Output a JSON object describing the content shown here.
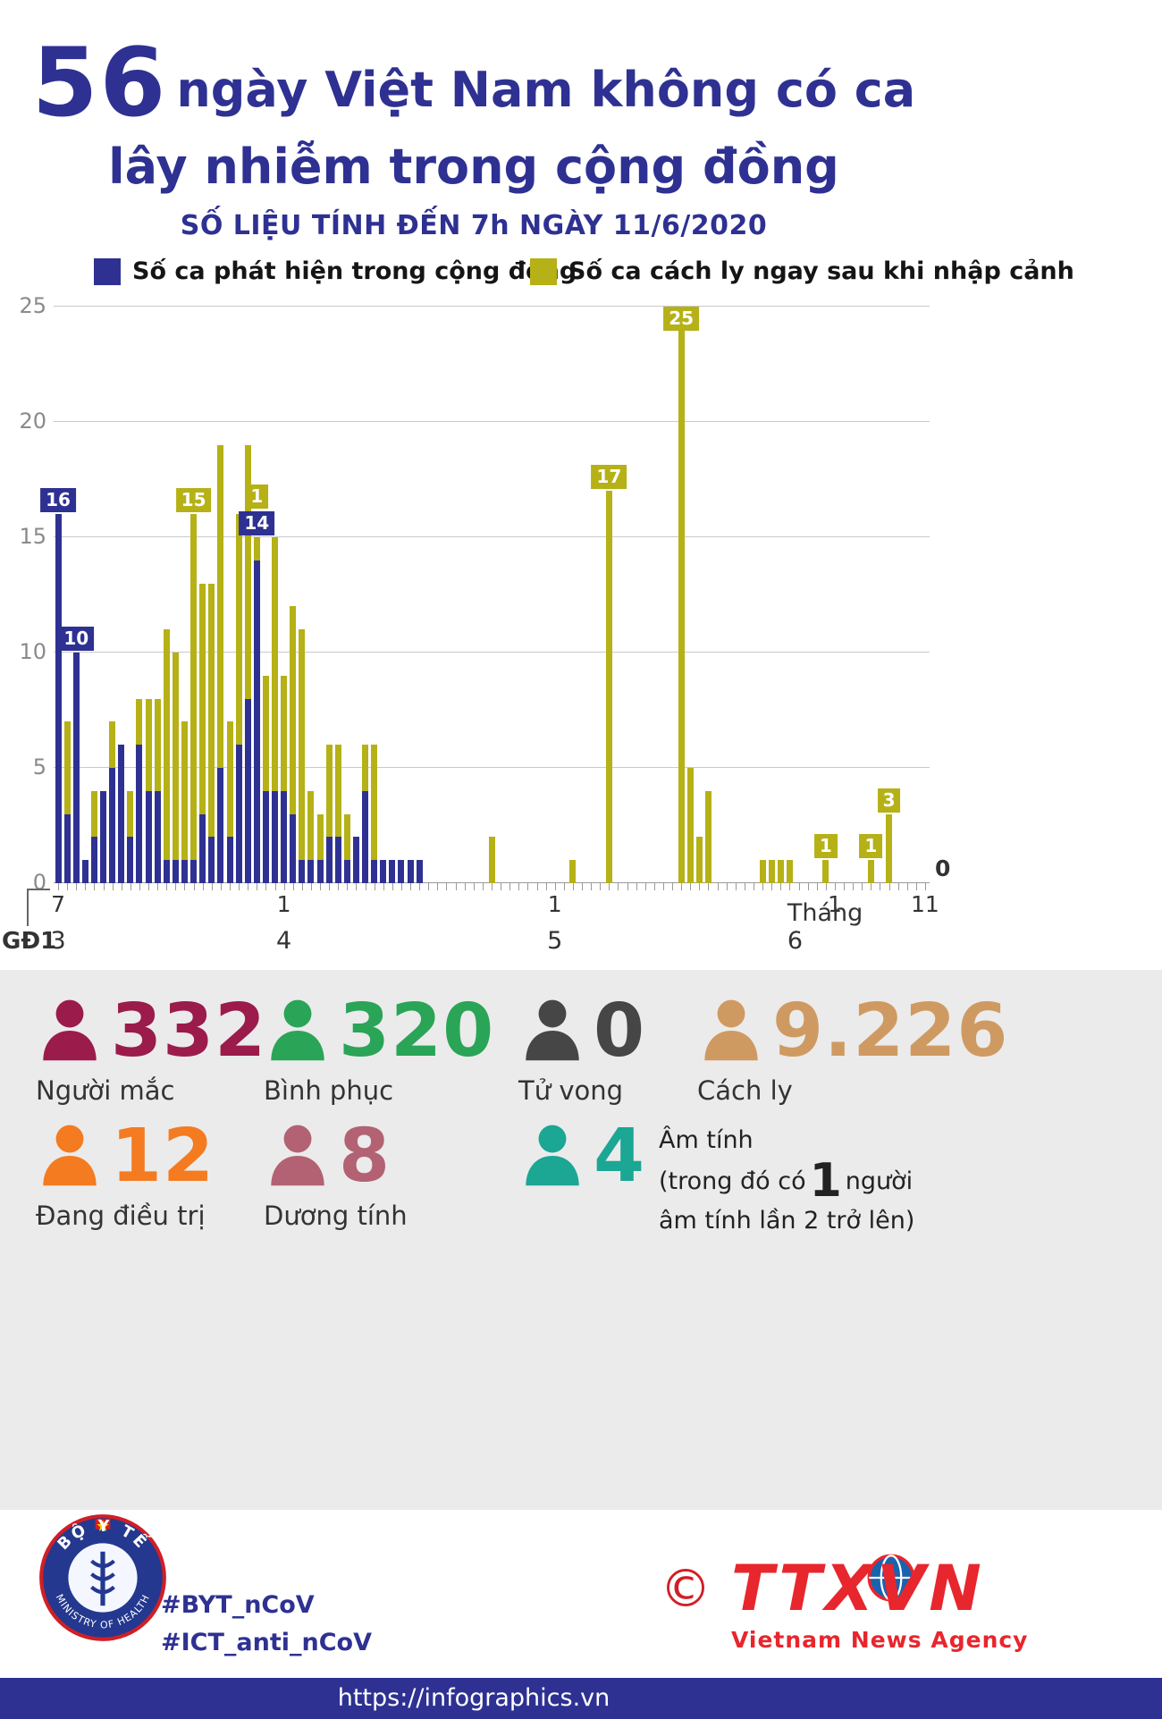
{
  "colors": {
    "primary": "#2e3192",
    "accent_yellow": "#b5b117",
    "panel_bg": "#ebebeb",
    "red": "#d01f26"
  },
  "header": {
    "title_number": "56",
    "title_line1": "ngày Việt Nam không có ca",
    "title_line2": "lây nhiễm trong cộng đồng",
    "subtitle": "SỐ LIỆU TÍNH ĐẾN 7h NGÀY 11/6/2020"
  },
  "chart_data": {
    "type": "bar",
    "stacked": true,
    "grid": "horizontal",
    "legend_position": "top",
    "ylim": [
      0,
      25
    ],
    "yticks": [
      0,
      5,
      10,
      15,
      20,
      25
    ],
    "colors": {
      "community": "#2e3192",
      "imported": "#b5b117"
    },
    "x": [
      "7/3",
      "8/3",
      "9/3",
      "10/3",
      "11/3",
      "12/3",
      "13/3",
      "14/3",
      "15/3",
      "16/3",
      "17/3",
      "18/3",
      "19/3",
      "20/3",
      "21/3",
      "22/3",
      "23/3",
      "24/3",
      "25/3",
      "26/3",
      "27/3",
      "28/3",
      "29/3",
      "30/3",
      "31/3",
      "1/4",
      "2/4",
      "3/4",
      "4/4",
      "5/4",
      "6/4",
      "7/4",
      "8/4",
      "9/4",
      "10/4",
      "11/4",
      "12/4",
      "13/4",
      "14/4",
      "15/4",
      "16/4",
      "17/4",
      "18/4",
      "19/4",
      "20/4",
      "21/4",
      "22/4",
      "23/4",
      "24/4",
      "25/4",
      "26/4",
      "27/4",
      "28/4",
      "29/4",
      "30/4",
      "1/5",
      "2/5",
      "3/5",
      "4/5",
      "5/5",
      "6/5",
      "7/5",
      "8/5",
      "9/5",
      "10/5",
      "11/5",
      "12/5",
      "13/5",
      "14/5",
      "15/5",
      "16/5",
      "17/5",
      "18/5",
      "19/5",
      "20/5",
      "21/5",
      "22/5",
      "23/5",
      "24/5",
      "25/5",
      "26/5",
      "27/5",
      "28/5",
      "29/5",
      "30/5",
      "31/5",
      "1/6",
      "2/6",
      "3/6",
      "4/6",
      "5/6",
      "6/6",
      "7/6",
      "8/6",
      "9/6",
      "10/6",
      "11/6"
    ],
    "series": [
      {
        "name": "Số ca phát hiện trong cộng đồng",
        "values": [
          16,
          3,
          10,
          1,
          2,
          4,
          5,
          6,
          2,
          6,
          4,
          4,
          1,
          1,
          1,
          1,
          3,
          2,
          5,
          2,
          6,
          8,
          14,
          4,
          4,
          4,
          3,
          1,
          1,
          1,
          2,
          2,
          1,
          2,
          4,
          1,
          1,
          1,
          1,
          1,
          1,
          0,
          0,
          0,
          0,
          0,
          0,
          0,
          0,
          0,
          0,
          0,
          0,
          0,
          0,
          0,
          0,
          0,
          0,
          0,
          0,
          0,
          0,
          0,
          0,
          0,
          0,
          0,
          0,
          0,
          0,
          0,
          0,
          0,
          0,
          0,
          0,
          0,
          0,
          0,
          0,
          0,
          0,
          0,
          0,
          0,
          0,
          0,
          0,
          0,
          0,
          0,
          0,
          0,
          0,
          0,
          0
        ]
      },
      {
        "name": "Số ca cách ly ngay sau khi nhập cảnh",
        "values": [
          0,
          4,
          0,
          0,
          2,
          0,
          2,
          0,
          2,
          2,
          4,
          4,
          10,
          9,
          6,
          15,
          10,
          11,
          14,
          5,
          10,
          11,
          1,
          5,
          11,
          5,
          9,
          10,
          3,
          2,
          4,
          4,
          2,
          0,
          2,
          5,
          0,
          0,
          0,
          0,
          0,
          0,
          0,
          0,
          0,
          0,
          0,
          0,
          2,
          0,
          0,
          0,
          0,
          0,
          0,
          0,
          0,
          1,
          0,
          0,
          0,
          17,
          0,
          0,
          0,
          0,
          0,
          0,
          0,
          25,
          5,
          2,
          4,
          0,
          0,
          0,
          0,
          0,
          1,
          1,
          1,
          1,
          0,
          0,
          0,
          1,
          0,
          0,
          0,
          0,
          1,
          0,
          3,
          0,
          0,
          0,
          0
        ]
      }
    ],
    "value_labels": [
      {
        "index": 0,
        "series": "community",
        "value": 16
      },
      {
        "index": 2,
        "series": "community",
        "value": 10
      },
      {
        "index": 15,
        "series": "imported",
        "value": 15
      },
      {
        "index": 22,
        "series": "community",
        "value": 14
      },
      {
        "index": 22,
        "series": "imported",
        "value": 1
      },
      {
        "index": 61,
        "series": "imported",
        "value": 17
      },
      {
        "index": 69,
        "series": "imported",
        "value": 25
      },
      {
        "index": 85,
        "series": "imported",
        "value": 1
      },
      {
        "index": 90,
        "series": "imported",
        "value": 1
      },
      {
        "index": 92,
        "series": "imported",
        "value": 3
      }
    ],
    "end_label": "0",
    "x_axis": {
      "phase_label": "GĐ1",
      "day_ticks": [
        {
          "index": 0,
          "label": "7"
        },
        {
          "index": 25,
          "label": "1"
        },
        {
          "index": 55,
          "label": "1"
        },
        {
          "index": 86,
          "label": "1"
        },
        {
          "index": 96,
          "label": "11"
        }
      ],
      "month_labels": [
        {
          "index": 0,
          "label": "3"
        },
        {
          "index": 25,
          "label": "4"
        },
        {
          "index": 55,
          "label": "5"
        },
        {
          "index": 86,
          "label": "Tháng 6"
        }
      ]
    }
  },
  "stats": {
    "row1": [
      {
        "value": "332",
        "label": "Người mắc",
        "color": "#9b1b4b"
      },
      {
        "value": "320",
        "label": "Bình phục",
        "color": "#2aa457"
      },
      {
        "value": "0",
        "label": "Tử vong",
        "color": "#464646"
      },
      {
        "value": "9.226",
        "label": "Cách ly",
        "color": "#cf9a62"
      }
    ],
    "row2": [
      {
        "value": "12",
        "label": "Đang điều trị",
        "color": "#f47b20"
      },
      {
        "value": "8",
        "label": "Dương tính",
        "color": "#b26272"
      },
      {
        "value": "4",
        "label": "",
        "color": "#1ca694"
      }
    ],
    "negative_note": {
      "line1": "Âm tính",
      "line2_pre": "(trong đó có",
      "big": "1",
      "line2_post": "người",
      "line3": "âm tính lần 2 trở lên)"
    }
  },
  "footer": {
    "moh_logo": {
      "top_text": "BỘ Y TẾ",
      "bottom_text": "MINISTRY OF HEALTH"
    },
    "hashtags": [
      "#BYT_nCoV",
      "#ICT_anti_nCoV"
    ],
    "copyright": "©",
    "agency_abbr": "TTXVN",
    "agency_name": "Vietnam News Agency",
    "url": "https://infographics.vn"
  }
}
